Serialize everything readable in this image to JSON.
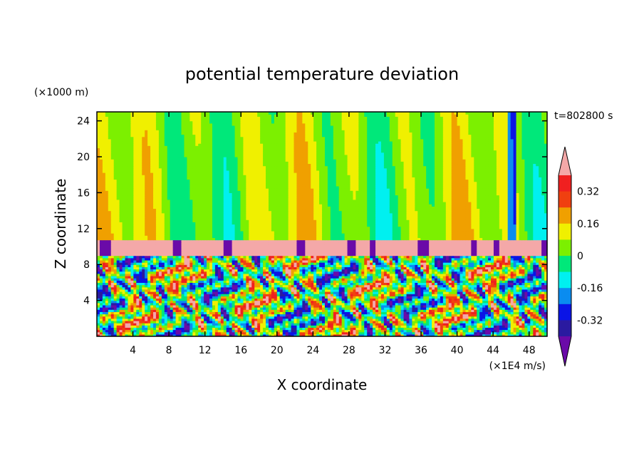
{
  "chart_data": {
    "type": "heatmap",
    "title": "potential temperature deviation",
    "xlabel": "X coordinate",
    "ylabel": "Z coordinate",
    "x_unit": "(×1E4 m/s)",
    "y_unit": "(×1000 m)",
    "time_label": "t=802800 s",
    "xlim": [
      0,
      50
    ],
    "ylim": [
      0,
      25
    ],
    "x_ticks": [
      "4",
      "8",
      "12",
      "16",
      "20",
      "24",
      "28",
      "32",
      "36",
      "40",
      "44",
      "48"
    ],
    "y_ticks": [
      "4",
      "8",
      "12",
      "16",
      "20",
      "24"
    ],
    "colorbar": {
      "labels": [
        "0.32",
        "0.16",
        "0",
        "-0.16",
        "-0.32"
      ],
      "levels": [
        -0.4,
        -0.32,
        -0.24,
        -0.16,
        -0.08,
        0,
        0.08,
        0.16,
        0.24,
        0.32,
        0.4
      ],
      "colors": [
        "#6a0aa8",
        "#2a1aa0",
        "#0a14e6",
        "#0a8cf0",
        "#00f0f0",
        "#00e87a",
        "#7cf000",
        "#f0f000",
        "#f0a000",
        "#f04010",
        "#f02020",
        "#f4a8a8"
      ],
      "extend": "both"
    },
    "regions": {
      "troposphere_top": 9,
      "inversion_layer": [
        9,
        10.8
      ],
      "description_levels": "lower layer strongly varying from -0.4 to 0.4; upper layer near 0"
    }
  },
  "figure": {
    "background": "#ffffff"
  }
}
